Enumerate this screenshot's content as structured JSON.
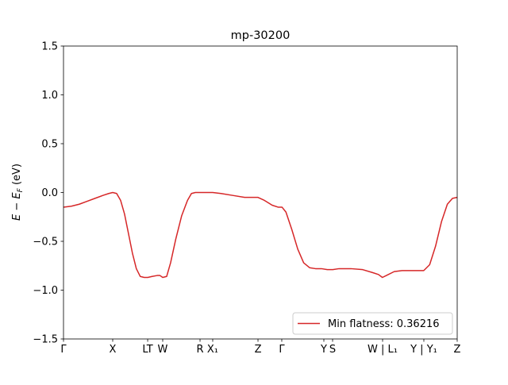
{
  "chart_data": {
    "type": "line",
    "title": "mp-30200",
    "xlabel": "",
    "ylabel": "E − E_F (eV)",
    "ylim": [
      -1.5,
      1.5
    ],
    "grid": false,
    "legend_position": "lower-right",
    "colors": {
      "series": "#d62728",
      "frame": "#000000",
      "background": "#ffffff"
    },
    "y_ticks": [
      {
        "value": 1.5,
        "label": "1.5"
      },
      {
        "value": 1.0,
        "label": "1.0"
      },
      {
        "value": 0.5,
        "label": "0.5"
      },
      {
        "value": 0.0,
        "label": "0.0"
      },
      {
        "value": -0.5,
        "label": "−0.5"
      },
      {
        "value": -1.0,
        "label": "−1.0"
      },
      {
        "value": -1.5,
        "label": "−1.5"
      }
    ],
    "x_ticks": [
      {
        "pos": 0.0,
        "label": "Γ"
      },
      {
        "pos": 0.125,
        "label": "X"
      },
      {
        "pos": 0.2138,
        "label": "LT"
      },
      {
        "pos": 0.252,
        "label": "W"
      },
      {
        "pos": 0.3468,
        "label": "R"
      },
      {
        "pos": 0.379,
        "label": "X₁"
      },
      {
        "pos": 0.494,
        "label": "Z"
      },
      {
        "pos": 0.5544,
        "label": "Γ"
      },
      {
        "pos": 0.6613,
        "label": "Y"
      },
      {
        "pos": 0.6835,
        "label": "S"
      },
      {
        "pos": 0.8105,
        "label": "W | L₁"
      },
      {
        "pos": 0.9153,
        "label": "Y | Y₁"
      },
      {
        "pos": 1.0,
        "label": "Z"
      }
    ],
    "x_range": [
      0,
      1
    ],
    "series": [
      {
        "name": "Min flatness: 0.36216",
        "color": "#d62728",
        "points": [
          [
            0.0,
            -0.15
          ],
          [
            0.02,
            -0.14
          ],
          [
            0.04,
            -0.12
          ],
          [
            0.06,
            -0.09
          ],
          [
            0.08,
            -0.06
          ],
          [
            0.1,
            -0.03
          ],
          [
            0.115,
            -0.01
          ],
          [
            0.125,
            0.0
          ],
          [
            0.135,
            -0.01
          ],
          [
            0.145,
            -0.08
          ],
          [
            0.155,
            -0.22
          ],
          [
            0.165,
            -0.42
          ],
          [
            0.175,
            -0.62
          ],
          [
            0.185,
            -0.78
          ],
          [
            0.195,
            -0.86
          ],
          [
            0.205,
            -0.87
          ],
          [
            0.214,
            -0.87
          ],
          [
            0.225,
            -0.86
          ],
          [
            0.238,
            -0.85
          ],
          [
            0.245,
            -0.85
          ],
          [
            0.252,
            -0.87
          ],
          [
            0.262,
            -0.86
          ],
          [
            0.272,
            -0.72
          ],
          [
            0.285,
            -0.48
          ],
          [
            0.3,
            -0.24
          ],
          [
            0.315,
            -0.08
          ],
          [
            0.325,
            -0.01
          ],
          [
            0.335,
            0.0
          ],
          [
            0.347,
            0.0
          ],
          [
            0.36,
            0.0
          ],
          [
            0.379,
            0.0
          ],
          [
            0.4,
            -0.01
          ],
          [
            0.43,
            -0.03
          ],
          [
            0.46,
            -0.05
          ],
          [
            0.494,
            -0.05
          ],
          [
            0.51,
            -0.08
          ],
          [
            0.53,
            -0.13
          ],
          [
            0.545,
            -0.15
          ],
          [
            0.555,
            -0.15
          ],
          [
            0.565,
            -0.2
          ],
          [
            0.58,
            -0.38
          ],
          [
            0.595,
            -0.58
          ],
          [
            0.61,
            -0.72
          ],
          [
            0.625,
            -0.77
          ],
          [
            0.64,
            -0.78
          ],
          [
            0.655,
            -0.78
          ],
          [
            0.67,
            -0.79
          ],
          [
            0.684,
            -0.79
          ],
          [
            0.7,
            -0.78
          ],
          [
            0.73,
            -0.78
          ],
          [
            0.76,
            -0.79
          ],
          [
            0.785,
            -0.82
          ],
          [
            0.8,
            -0.84
          ],
          [
            0.81,
            -0.87
          ],
          [
            0.82,
            -0.85
          ],
          [
            0.84,
            -0.81
          ],
          [
            0.86,
            -0.8
          ],
          [
            0.88,
            -0.8
          ],
          [
            0.9,
            -0.8
          ],
          [
            0.915,
            -0.8
          ],
          [
            0.93,
            -0.74
          ],
          [
            0.945,
            -0.55
          ],
          [
            0.96,
            -0.3
          ],
          [
            0.975,
            -0.12
          ],
          [
            0.988,
            -0.06
          ],
          [
            1.0,
            -0.05
          ]
        ]
      }
    ]
  }
}
